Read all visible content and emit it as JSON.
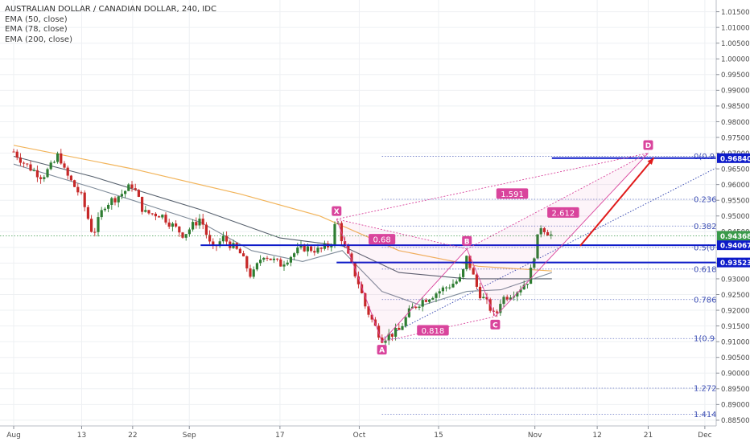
{
  "legend": {
    "title": "AUSTRALIAN DOLLAR / CANADIAN DOLLAR, 240, IDC",
    "studies": [
      "EMA (50, close)",
      "EMA (78, close)",
      "EMA (200, close)"
    ]
  },
  "colors": {
    "background": "#ffffff",
    "grid": "#eef0f3",
    "candle_up": "#2e7d32",
    "candle_down": "#c62828",
    "ema50": "#7f8c9a",
    "ema78": "#56606d",
    "ema200": "#f2b45a",
    "harmonic": "#d9449c",
    "fib": "#3f51b5",
    "level": "#0d1bc9",
    "arrow": "#e01a1a",
    "last_price": "#3a9a4a",
    "axis_text": "#4a4a4a"
  },
  "chart_data": {
    "type": "candlestick",
    "symbol": "AUDCAD",
    "x_axis_labels": [
      "Aug",
      "13",
      "22",
      "Sep",
      "17",
      "Oct",
      "15",
      "Nov",
      "12",
      "21",
      "Dec"
    ],
    "y_axis_labels": [
      "1.01500",
      "1.01000",
      "1.00500",
      "1.00000",
      "0.99500",
      "0.99000",
      "0.98500",
      "0.98000",
      "0.97500",
      "0.97000",
      "0.96500",
      "0.96000",
      "0.95500",
      "0.95000",
      "0.94500",
      "0.94000",
      "0.93500",
      "0.93000",
      "0.92500",
      "0.92000",
      "0.91500",
      "0.91000",
      "0.90500",
      "0.90000",
      "0.89500",
      "0.89000",
      "0.88500"
    ],
    "ylim": [
      0.8835,
      1.0175
    ],
    "price_path": [
      {
        "date": "2018-08-01",
        "price": 0.9705
      },
      {
        "date": "2018-08-03",
        "price": 0.9665
      },
      {
        "date": "2018-08-06",
        "price": 0.9625
      },
      {
        "date": "2018-08-08",
        "price": 0.9665
      },
      {
        "date": "2018-08-09",
        "price": 0.97
      },
      {
        "date": "2018-08-10",
        "price": 0.964
      },
      {
        "date": "2018-08-13",
        "price": 0.956
      },
      {
        "date": "2018-08-15",
        "price": 0.944
      },
      {
        "date": "2018-08-17",
        "price": 0.9535
      },
      {
        "date": "2018-08-20",
        "price": 0.957
      },
      {
        "date": "2018-08-22",
        "price": 0.96
      },
      {
        "date": "2018-08-24",
        "price": 0.951
      },
      {
        "date": "2018-08-27",
        "price": 0.9505
      },
      {
        "date": "2018-08-29",
        "price": 0.947
      },
      {
        "date": "2018-08-31",
        "price": 0.944
      },
      {
        "date": "2018-09-03",
        "price": 0.9495
      },
      {
        "date": "2018-09-05",
        "price": 0.939
      },
      {
        "date": "2018-09-07",
        "price": 0.943
      },
      {
        "date": "2018-09-10",
        "price": 0.938
      },
      {
        "date": "2018-09-12",
        "price": 0.9305
      },
      {
        "date": "2018-09-14",
        "price": 0.938
      },
      {
        "date": "2018-09-17",
        "price": 0.9345
      },
      {
        "date": "2018-09-19",
        "price": 0.9375
      },
      {
        "date": "2018-09-21",
        "price": 0.94
      },
      {
        "date": "2018-09-24",
        "price": 0.939
      },
      {
        "date": "2018-09-26",
        "price": 0.941
      },
      {
        "date": "2018-09-27",
        "price": 0.9495
      },
      {
        "date": "2018-09-28",
        "price": 0.942
      },
      {
        "date": "2018-10-01",
        "price": 0.928
      },
      {
        "date": "2018-10-02",
        "price": 0.9215
      },
      {
        "date": "2018-10-04",
        "price": 0.914
      },
      {
        "date": "2018-10-05",
        "price": 0.911
      },
      {
        "date": "2018-10-08",
        "price": 0.9135
      },
      {
        "date": "2018-10-10",
        "price": 0.92
      },
      {
        "date": "2018-10-12",
        "price": 0.923
      },
      {
        "date": "2018-10-15",
        "price": 0.926
      },
      {
        "date": "2018-10-17",
        "price": 0.928
      },
      {
        "date": "2018-10-19",
        "price": 0.93
      },
      {
        "date": "2018-10-20",
        "price": 0.937
      },
      {
        "date": "2018-10-22",
        "price": 0.926
      },
      {
        "date": "2018-10-24",
        "price": 0.921
      },
      {
        "date": "2018-10-25",
        "price": 0.9175
      },
      {
        "date": "2018-10-26",
        "price": 0.9235
      },
      {
        "date": "2018-10-29",
        "price": 0.9265
      },
      {
        "date": "2018-10-31",
        "price": 0.93
      },
      {
        "date": "2018-11-01",
        "price": 0.939
      },
      {
        "date": "2018-11-02",
        "price": 0.947
      },
      {
        "date": "2018-11-04",
        "price": 0.9437
      }
    ],
    "ema50_path": [
      {
        "date": "2018-08-01",
        "price": 0.9665
      },
      {
        "date": "2018-08-15",
        "price": 0.959
      },
      {
        "date": "2018-08-22",
        "price": 0.955
      },
      {
        "date": "2018-09-03",
        "price": 0.948
      },
      {
        "date": "2018-09-12",
        "price": 0.939
      },
      {
        "date": "2018-09-21",
        "price": 0.9355
      },
      {
        "date": "2018-09-28",
        "price": 0.939
      },
      {
        "date": "2018-10-05",
        "price": 0.926
      },
      {
        "date": "2018-10-12",
        "price": 0.9215
      },
      {
        "date": "2018-10-20",
        "price": 0.926
      },
      {
        "date": "2018-10-26",
        "price": 0.9265
      },
      {
        "date": "2018-11-04",
        "price": 0.932
      }
    ],
    "ema78_path": [
      {
        "date": "2018-08-01",
        "price": 0.969
      },
      {
        "date": "2018-08-15",
        "price": 0.9625
      },
      {
        "date": "2018-09-03",
        "price": 0.952
      },
      {
        "date": "2018-09-17",
        "price": 0.943
      },
      {
        "date": "2018-09-28",
        "price": 0.9405
      },
      {
        "date": "2018-10-08",
        "price": 0.932
      },
      {
        "date": "2018-10-20",
        "price": 0.93
      },
      {
        "date": "2018-11-04",
        "price": 0.93
      }
    ],
    "ema200_path": [
      {
        "date": "2018-08-01",
        "price": 0.9725
      },
      {
        "date": "2018-08-22",
        "price": 0.965
      },
      {
        "date": "2018-09-10",
        "price": 0.957
      },
      {
        "date": "2018-09-24",
        "price": 0.95
      },
      {
        "date": "2018-10-08",
        "price": 0.939
      },
      {
        "date": "2018-10-22",
        "price": 0.934
      },
      {
        "date": "2018-11-04",
        "price": 0.9325
      }
    ],
    "harmonic_points": [
      {
        "label": "X",
        "date": "2018-09-27",
        "price": 0.949
      },
      {
        "label": "A",
        "date": "2018-10-05",
        "price": 0.91
      },
      {
        "label": "B",
        "date": "2018-10-20",
        "price": 0.9395
      },
      {
        "label": "C",
        "date": "2018-10-25",
        "price": 0.918
      },
      {
        "label": "D",
        "date": "2018-11-21",
        "price": 0.97
      }
    ],
    "ratios": [
      {
        "text": "0.68",
        "from": "X",
        "via": "B",
        "date": "2018-10-05",
        "price": 0.9425
      },
      {
        "text": "0.818",
        "from": "A",
        "via": "C",
        "date": "2018-10-14",
        "price": 0.9135
      },
      {
        "text": "1.591",
        "from": "X",
        "via": "D",
        "date": "2018-10-28",
        "price": 0.957
      },
      {
        "text": "2.612",
        "from": "B",
        "via": "D",
        "date": "2018-11-06",
        "price": 0.951
      }
    ],
    "fib_levels": [
      {
        "label": "0(0.9",
        "price": 0.969
      },
      {
        "label": "0.236",
        "price": 0.9553
      },
      {
        "label": "0.382",
        "price": 0.9468
      },
      {
        "label": "0.5(0",
        "price": 0.94
      },
      {
        "label": "0.618",
        "price": 0.9331
      },
      {
        "label": "0.786",
        "price": 0.9234
      },
      {
        "label": "1(0.9",
        "price": 0.911
      },
      {
        "label": "1.272",
        "price": 0.8952
      },
      {
        "label": "1.414",
        "price": 0.8869
      }
    ],
    "fib_start_date": "2018-10-05",
    "fib_end_date": "2018-12-07",
    "fib_trend_from": {
      "date": "2018-10-05",
      "price": 0.911
    },
    "fib_trend_to": {
      "date": "2018-12-07",
      "price": 0.969
    },
    "horizontal_levels": [
      {
        "price_label": "0.96840",
        "price": 0.9684,
        "from_date": "2018-11-04"
      },
      {
        "price_label": "0.94067",
        "price": 0.9407,
        "from_date": "2018-09-03"
      },
      {
        "price_label": "0.93523",
        "price": 0.9352,
        "from_date": "2018-09-27"
      }
    ],
    "last_price": {
      "label": "0.94368",
      "price": 0.9437
    },
    "projection_arrow": {
      "from": {
        "date": "2018-11-09",
        "price": 0.9405
      },
      "to": {
        "date": "2018-11-22",
        "price": 0.9685
      }
    }
  }
}
